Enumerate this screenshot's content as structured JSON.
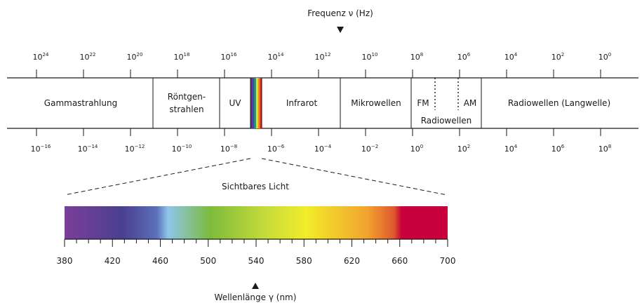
{
  "freq_axis": {
    "label": "Frequenz ν (Hz)",
    "exponents": [
      "24",
      "22",
      "20",
      "18",
      "16",
      "14",
      "12",
      "10",
      "8",
      "6",
      "4",
      "2",
      "0"
    ]
  },
  "wave_axis": {
    "exponents": [
      "-16",
      "-14",
      "-12",
      "-10",
      "-8",
      "-6",
      "-4",
      "-2",
      "0",
      "2",
      "4",
      "6",
      "8"
    ]
  },
  "bands": [
    {
      "label": "Gammastrahlung"
    },
    {
      "label": "Röntgen-"
    },
    {
      "label": "strahlen"
    },
    {
      "label": "UV"
    },
    {
      "label": "Infrarot"
    },
    {
      "label": "Mikrowellen"
    },
    {
      "label": "FM"
    },
    {
      "label": "AM"
    },
    {
      "label": "Radiowellen"
    },
    {
      "label": "Radiowellen (Langwelle)"
    }
  ],
  "visible": {
    "title": "Sichtbares Licht",
    "ticks": [
      "380",
      "420",
      "460",
      "500",
      "540",
      "580",
      "620",
      "660",
      "700"
    ],
    "axis_label": "Wellenlänge γ (nm)",
    "colors": [
      "#7b3f98",
      "#4a3f8f",
      "#5b6fb8",
      "#8ec5ea",
      "#7dbb3c",
      "#c8dc3a",
      "#f2ec2a",
      "#f2a330",
      "#e0582e",
      "#c8003c",
      "#c8003c"
    ]
  },
  "rainbow": [
    "#5a2b8a",
    "#3b4ea8",
    "#2f9a5a",
    "#e6e22a",
    "#f08a24",
    "#d9262a"
  ]
}
